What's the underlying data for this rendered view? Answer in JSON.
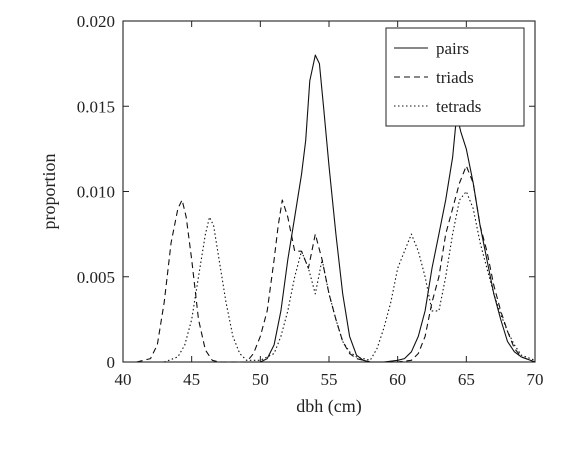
{
  "chart_data": {
    "type": "line",
    "title": "",
    "xlabel": "dbh (cm)",
    "ylabel": "proportion",
    "xlim": [
      40,
      70
    ],
    "ylim": [
      0,
      0.02
    ],
    "x_ticks": [
      40,
      45,
      50,
      55,
      60,
      65,
      70
    ],
    "y_ticks": [
      0,
      0.005,
      0.01,
      0.015,
      0.02
    ],
    "x_tick_labels": [
      "40",
      "45",
      "50",
      "55",
      "60",
      "65",
      "70"
    ],
    "y_tick_labels": [
      "0",
      "0.005",
      "0.010",
      "0.015",
      "0.020"
    ],
    "grid": false,
    "legend_position": "top-right",
    "series": [
      {
        "name": "pairs",
        "style": "solid",
        "color": "#111111",
        "points": [
          [
            49.0,
            0
          ],
          [
            50.0,
            0
          ],
          [
            50.5,
            0.0002
          ],
          [
            51.0,
            0.001
          ],
          [
            51.5,
            0.003
          ],
          [
            52.0,
            0.006
          ],
          [
            52.5,
            0.0085
          ],
          [
            53.0,
            0.011
          ],
          [
            53.3,
            0.013
          ],
          [
            53.6,
            0.0165
          ],
          [
            54.0,
            0.018
          ],
          [
            54.3,
            0.0175
          ],
          [
            54.6,
            0.015
          ],
          [
            55.0,
            0.0115
          ],
          [
            55.5,
            0.0075
          ],
          [
            56.0,
            0.004
          ],
          [
            56.5,
            0.0015
          ],
          [
            57.0,
            0.0004
          ],
          [
            57.5,
            0.0001
          ],
          [
            58.0,
            0
          ],
          [
            59.0,
            0
          ],
          [
            60.0,
            0.0001
          ],
          [
            60.5,
            0.0002
          ],
          [
            61.0,
            0.0006
          ],
          [
            61.5,
            0.0015
          ],
          [
            62.0,
            0.003
          ],
          [
            62.5,
            0.0055
          ],
          [
            63.0,
            0.0075
          ],
          [
            63.5,
            0.0095
          ],
          [
            64.0,
            0.012
          ],
          [
            64.3,
            0.0145
          ],
          [
            64.6,
            0.0135
          ],
          [
            65.0,
            0.0125
          ],
          [
            65.5,
            0.0105
          ],
          [
            66.0,
            0.008
          ],
          [
            66.5,
            0.006
          ],
          [
            67.0,
            0.004
          ],
          [
            67.5,
            0.0025
          ],
          [
            68.0,
            0.0012
          ],
          [
            68.5,
            0.0006
          ],
          [
            69.0,
            0.0003
          ],
          [
            70.0,
            0
          ]
        ]
      },
      {
        "name": "triads",
        "style": "dashed",
        "color": "#111111",
        "points": [
          [
            41.0,
            0
          ],
          [
            42.0,
            0.0002
          ],
          [
            42.5,
            0.001
          ],
          [
            43.0,
            0.0035
          ],
          [
            43.5,
            0.007
          ],
          [
            44.0,
            0.009
          ],
          [
            44.3,
            0.0095
          ],
          [
            44.6,
            0.0085
          ],
          [
            45.0,
            0.006
          ],
          [
            45.5,
            0.0025
          ],
          [
            46.0,
            0.0007
          ],
          [
            46.5,
            0.0001
          ],
          [
            47.0,
            0
          ],
          [
            49.0,
            0
          ],
          [
            49.5,
            0.0005
          ],
          [
            50.0,
            0.0015
          ],
          [
            50.5,
            0.003
          ],
          [
            51.0,
            0.006
          ],
          [
            51.3,
            0.008
          ],
          [
            51.6,
            0.0095
          ],
          [
            52.0,
            0.0085
          ],
          [
            52.5,
            0.0065
          ],
          [
            53.0,
            0.0065
          ],
          [
            53.5,
            0.0055
          ],
          [
            54.0,
            0.0075
          ],
          [
            54.5,
            0.006
          ],
          [
            55.0,
            0.004
          ],
          [
            55.5,
            0.0025
          ],
          [
            56.0,
            0.0012
          ],
          [
            56.5,
            0.0005
          ],
          [
            57.0,
            0.0002
          ],
          [
            58.0,
            0
          ],
          [
            60.0,
            0
          ],
          [
            61.0,
            0.0001
          ],
          [
            61.5,
            0.0005
          ],
          [
            62.0,
            0.0015
          ],
          [
            62.5,
            0.0035
          ],
          [
            63.0,
            0.005
          ],
          [
            63.5,
            0.0075
          ],
          [
            64.0,
            0.009
          ],
          [
            64.5,
            0.0105
          ],
          [
            65.0,
            0.0115
          ],
          [
            65.5,
            0.0105
          ],
          [
            66.0,
            0.008
          ],
          [
            66.5,
            0.0065
          ],
          [
            67.0,
            0.0045
          ],
          [
            67.5,
            0.003
          ],
          [
            68.0,
            0.0018
          ],
          [
            68.5,
            0.0008
          ],
          [
            69.0,
            0.0003
          ],
          [
            70.0,
            0
          ]
        ]
      },
      {
        "name": "tetrads",
        "style": "dotted",
        "color": "#111111",
        "points": [
          [
            43.0,
            0
          ],
          [
            44.0,
            0.0003
          ],
          [
            44.5,
            0.001
          ],
          [
            45.0,
            0.0025
          ],
          [
            45.5,
            0.005
          ],
          [
            46.0,
            0.0075
          ],
          [
            46.3,
            0.0085
          ],
          [
            46.6,
            0.008
          ],
          [
            47.0,
            0.006
          ],
          [
            47.5,
            0.0035
          ],
          [
            48.0,
            0.0015
          ],
          [
            48.5,
            0.0005
          ],
          [
            49.0,
            0.0001
          ],
          [
            50.0,
            0.0001
          ],
          [
            51.0,
            0.0005
          ],
          [
            51.5,
            0.0015
          ],
          [
            52.0,
            0.003
          ],
          [
            52.5,
            0.005
          ],
          [
            53.0,
            0.0065
          ],
          [
            53.5,
            0.0055
          ],
          [
            54.0,
            0.004
          ],
          [
            54.5,
            0.006
          ],
          [
            55.0,
            0.004
          ],
          [
            55.5,
            0.0025
          ],
          [
            56.0,
            0.0012
          ],
          [
            56.5,
            0.0006
          ],
          [
            57.0,
            0.0003
          ],
          [
            58.0,
            0.0001
          ],
          [
            58.5,
            0.0008
          ],
          [
            59.0,
            0.002
          ],
          [
            59.5,
            0.0035
          ],
          [
            60.0,
            0.0055
          ],
          [
            60.5,
            0.0065
          ],
          [
            61.0,
            0.0075
          ],
          [
            61.5,
            0.0065
          ],
          [
            62.0,
            0.005
          ],
          [
            62.5,
            0.003
          ],
          [
            63.0,
            0.003
          ],
          [
            63.5,
            0.005
          ],
          [
            64.0,
            0.0075
          ],
          [
            64.5,
            0.0095
          ],
          [
            65.0,
            0.01
          ],
          [
            65.5,
            0.009
          ],
          [
            66.0,
            0.007
          ],
          [
            66.5,
            0.0055
          ],
          [
            67.0,
            0.004
          ],
          [
            67.5,
            0.0028
          ],
          [
            68.0,
            0.0018
          ],
          [
            68.5,
            0.001
          ],
          [
            69.0,
            0.0004
          ],
          [
            70.0,
            0.0001
          ]
        ]
      }
    ]
  }
}
